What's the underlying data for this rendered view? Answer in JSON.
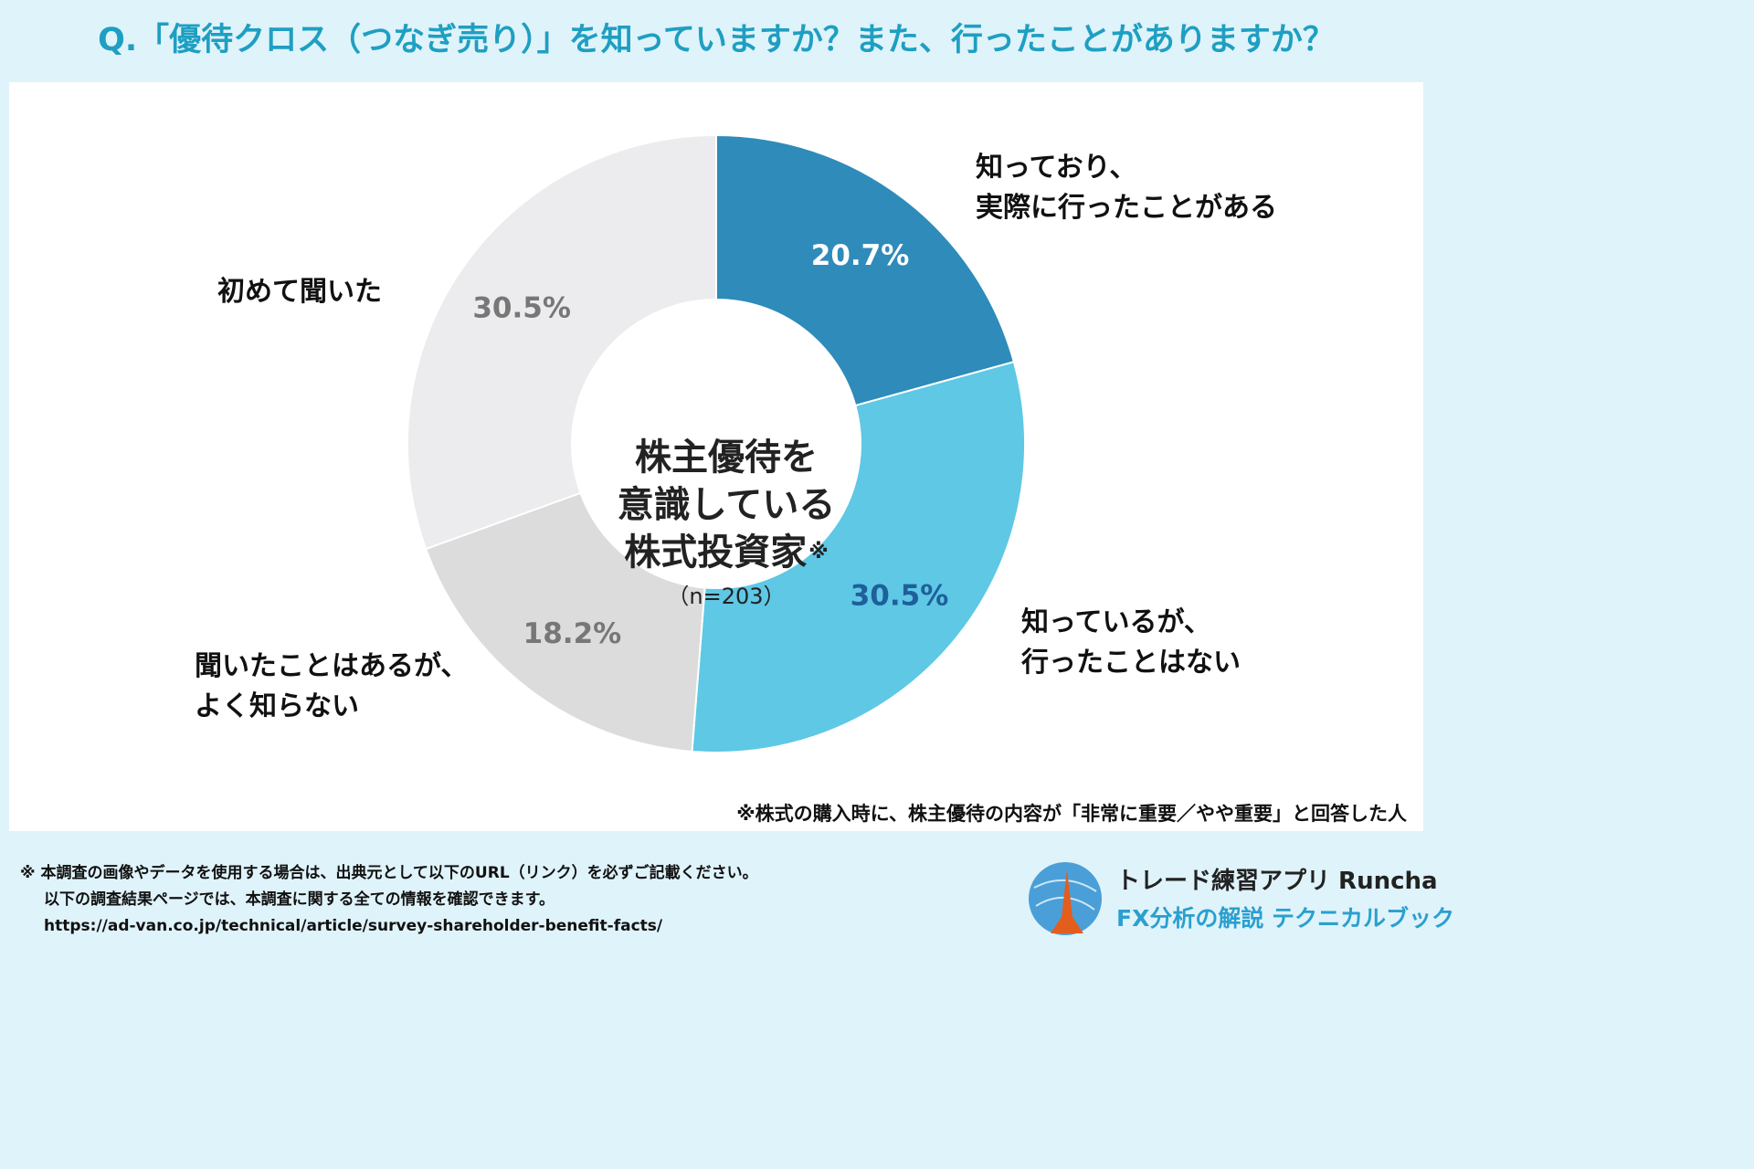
{
  "title": "Q.「優待クロス（つなぎ売り）」を知っていますか？また、行ったことがありますか？",
  "chart_data": {
    "type": "pie",
    "donut": true,
    "slices": [
      {
        "label_lines": [
          "知っており、",
          "実際に行ったことがある"
        ],
        "value": 20.7,
        "value_label": "20.7%",
        "color": "#2e8bba",
        "value_color": "#ffffff"
      },
      {
        "label_lines": [
          "知っているが、",
          "行ったことはない"
        ],
        "value": 30.5,
        "value_label": "30.5%",
        "color": "#5ec8e5",
        "value_color": "#1f5f9a"
      },
      {
        "label_lines": [
          "聞いたことはあるが、",
          "よく知らない"
        ],
        "value": 18.2,
        "value_label": "18.2%",
        "color": "#dcdcdc",
        "value_color": "#777777"
      },
      {
        "label_lines": [
          "初めて聞いた"
        ],
        "value": 30.5,
        "value_label": "30.5%",
        "color": "#ececee",
        "value_color": "#777777"
      }
    ],
    "center_lines": [
      "株主優待を",
      "意識している",
      "株式投資家"
    ],
    "center_mark": "※",
    "center_n": "（n=203）"
  },
  "note": "※株式の購入時に、株主優待の内容が「非常に重要／やや重要」と回答した人",
  "footer": {
    "lines": [
      "※ 本調査の画像やデータを使用する場合は、出典元として以下のURL（リンク）を必ずご記載ください。",
      "以下の調査結果ページでは、本調査に関する全ての情報を確認できます。",
      "https://ad-van.co.jp/technical/article/survey-shareholder-benefit-facts/"
    ]
  },
  "brand": {
    "name": "トレード練習アプリ Runcha",
    "sub": "FX分析の解説 テクニカルブック"
  }
}
